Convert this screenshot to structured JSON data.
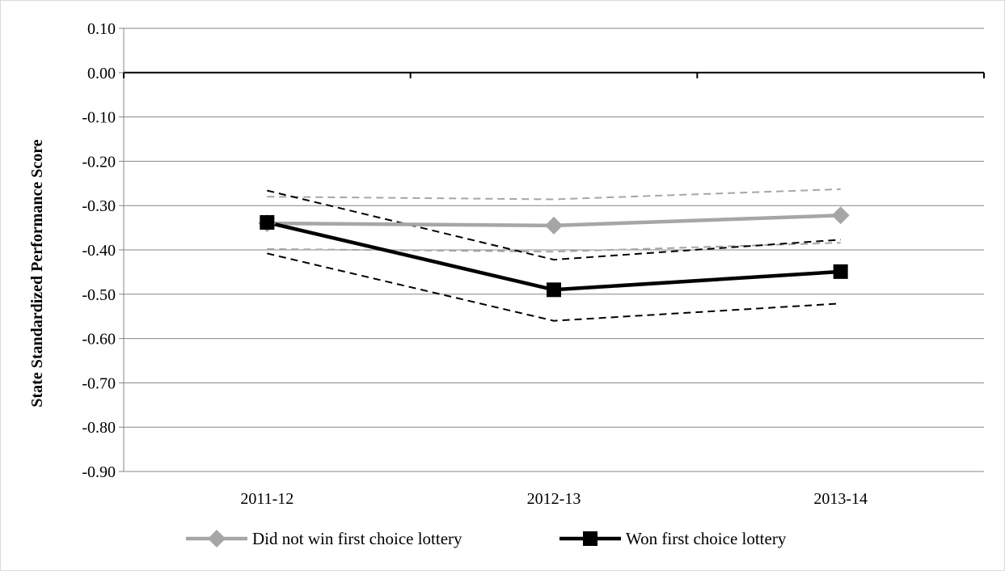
{
  "chart_data": {
    "type": "line",
    "title": "",
    "xlabel": "",
    "ylabel": "State Standardized Performance Score",
    "categories": [
      "2011-12",
      "2012-13",
      "2013-14"
    ],
    "ylim": [
      -0.9,
      0.1
    ],
    "yticks": [
      0.1,
      0.0,
      -0.1,
      -0.2,
      -0.3,
      -0.4,
      -0.5,
      -0.6,
      -0.7,
      -0.8,
      -0.9
    ],
    "ytick_labels": [
      "0.10",
      "0.00",
      "-0.10",
      "-0.20",
      "-0.30",
      "-0.40",
      "-0.50",
      "-0.60",
      "-0.70",
      "-0.80",
      "-0.90"
    ],
    "grid": true,
    "legend_position": "bottom",
    "series": [
      {
        "name": "Did not win first choice lottery",
        "values": [
          -0.34,
          -0.345,
          -0.322
        ],
        "color": "#a6a6a6",
        "marker": "diamond",
        "ci_upper": [
          -0.28,
          -0.286,
          -0.263
        ],
        "ci_lower": [
          -0.398,
          -0.404,
          -0.384
        ]
      },
      {
        "name": "Won first choice lottery",
        "values": [
          -0.338,
          -0.49,
          -0.449
        ],
        "color": "#000000",
        "marker": "square",
        "ci_upper": [
          -0.266,
          -0.422,
          -0.377
        ],
        "ci_lower": [
          -0.408,
          -0.56,
          -0.521
        ]
      }
    ]
  }
}
